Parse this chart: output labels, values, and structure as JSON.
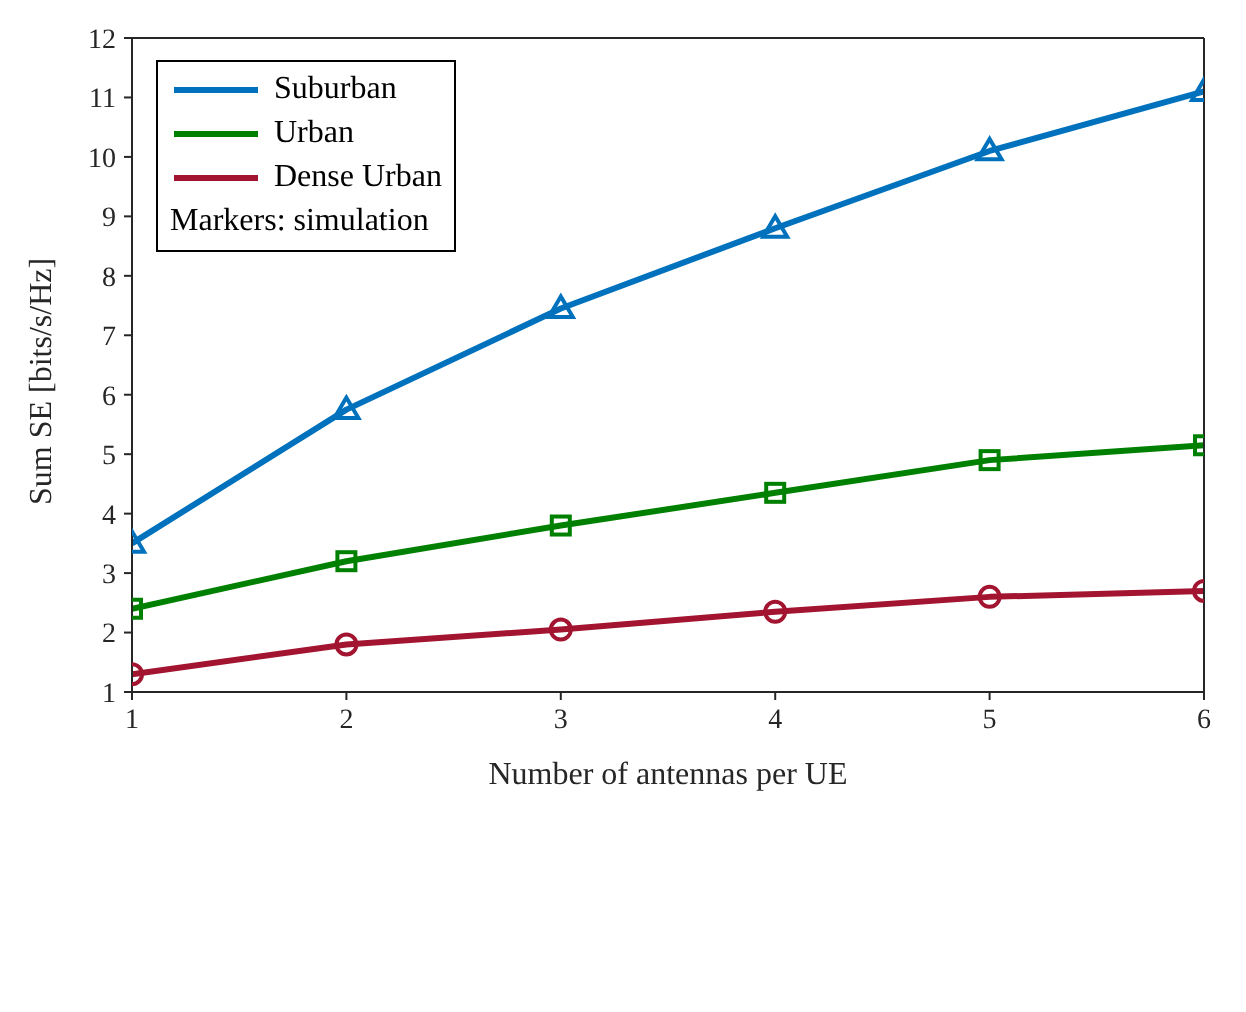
{
  "chart_data": {
    "type": "line",
    "xlabel": "Number of antennas per UE",
    "ylabel": "Sum SE [bits/s/Hz]",
    "x": [
      1,
      2,
      3,
      4,
      5,
      6
    ],
    "xlim": [
      1,
      6
    ],
    "xticks": [
      1,
      2,
      3,
      4,
      5,
      6
    ],
    "ylim": [
      1,
      12
    ],
    "yticks": [
      1,
      2,
      3,
      4,
      5,
      6,
      7,
      8,
      9,
      10,
      11,
      12
    ],
    "grid": false,
    "legend": "top left",
    "line_style": "solid",
    "annotations": [
      "Markers: simulation"
    ],
    "series": [
      {
        "name": "Suburban",
        "color": "#0072bd",
        "marker": "triangle",
        "values": [
          3.5,
          5.75,
          7.45,
          8.8,
          10.1,
          11.1
        ]
      },
      {
        "name": "Urban",
        "color": "#008000",
        "marker": "square",
        "values": [
          2.4,
          3.2,
          3.8,
          4.35,
          4.9,
          5.15
        ]
      },
      {
        "name": "Dense Urban",
        "color": "#a2142f",
        "marker": "circle",
        "values": [
          1.3,
          1.8,
          2.05,
          2.35,
          2.6,
          2.7
        ]
      }
    ]
  }
}
